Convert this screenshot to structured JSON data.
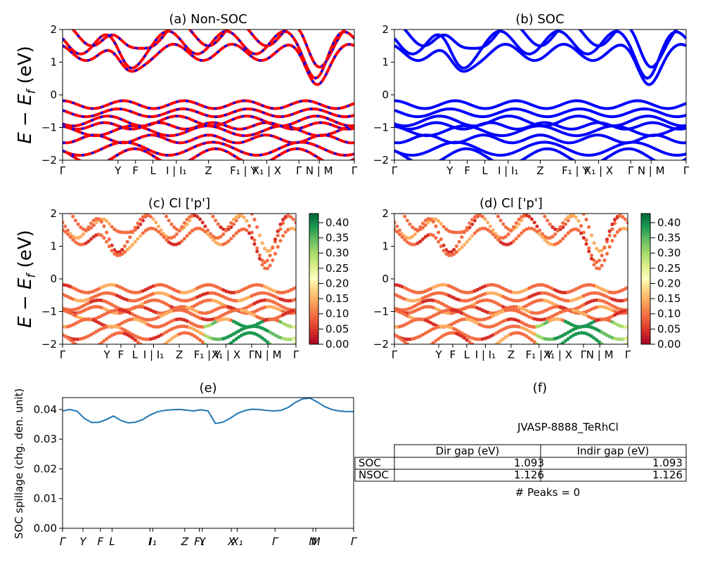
{
  "figure": {
    "panels": {
      "a": {
        "title": "(a) Non-SOC",
        "ylabel": "E − E_f (eV)"
      },
      "b": {
        "title": "(b) SOC"
      },
      "c": {
        "title": "(c)  Cl ['p']",
        "ylabel": "E − E_f (eV)"
      },
      "d": {
        "title": "(d) Cl ['p']"
      },
      "e": {
        "title": "(e)",
        "ylabel": "SOC spillage (chg. den. unit)"
      },
      "f": {
        "title": "(f)"
      }
    },
    "colorbar": {
      "ticks": [
        "0.00",
        "0.05",
        "0.10",
        "0.15",
        "0.20",
        "0.25",
        "0.30",
        "0.35",
        "0.40"
      ],
      "max": 0.43,
      "colors": [
        "#a50026",
        "#d73027",
        "#f46d43",
        "#fdae61",
        "#fee08b",
        "#ffffbf",
        "#d9ef8b",
        "#a6d96a",
        "#66bd63",
        "#1a9850",
        "#006837"
      ]
    },
    "colors": {
      "nonsoc_line": "#ff0000",
      "soc_line": "#0000ff",
      "spillage_line": "#1f77b4"
    }
  },
  "kpath_labels_band": [
    "Γ",
    "Y",
    "F",
    "L",
    "I | I₁",
    "Z",
    "F₁ | Y",
    "X₁ | X",
    "Γ",
    "N | M",
    "Γ"
  ],
  "kpath_labels_spillage": [
    "Γ",
    "Y",
    "F",
    "L",
    "I",
    "I₁",
    "Z",
    "F₁",
    "Y",
    "X",
    "X₁",
    "Γ",
    "N",
    "M",
    "Γ"
  ],
  "table": {
    "title": "JVASP-8888_TeRhCl",
    "headers": [
      "Dir gap (eV)",
      "Indir gap (eV)"
    ],
    "rows": [
      {
        "label": "SOC",
        "dir": "1.093",
        "indir": "1.093"
      },
      {
        "label": "NSOC",
        "dir": "1.126",
        "indir": "1.126"
      }
    ],
    "footer": "# Peaks = 0"
  },
  "chart_data": [
    {
      "type": "line",
      "title": "(a) Non-SOC",
      "ylabel": "E − E_f (eV)",
      "ylim": [
        -2,
        2
      ],
      "yticks": [
        -2,
        -1,
        0,
        1,
        2
      ],
      "x": [
        "Γ",
        "Y",
        "F",
        "L",
        "I | I₁",
        "Z",
        "F₁ | Y",
        "X₁ | X",
        "Γ",
        "N | M",
        "Γ"
      ],
      "description_series": [
        {
          "name": "bands",
          "color": "#ff0000"
        }
      ]
    },
    {
      "type": "line",
      "title": "(b) SOC",
      "ylim": [
        -2,
        2
      ],
      "yticks": [
        -2,
        -1,
        0,
        1,
        2
      ],
      "x": [
        "Γ",
        "Y",
        "F",
        "L",
        "I | I₁",
        "Z",
        "F₁ | Y",
        "X₁ | X",
        "Γ",
        "N | M",
        "Γ"
      ]
    },
    {
      "type": "scatter",
      "title": "(c)  Cl ['p']",
      "ylabel": "E − E_f (eV)",
      "ylim": [
        -2,
        2
      ],
      "colorbar": [
        0.0,
        0.43
      ]
    },
    {
      "type": "scatter",
      "title": "(d) Cl ['p']",
      "ylim": [
        -2,
        2
      ],
      "colorbar": [
        0.0,
        0.43
      ]
    },
    {
      "type": "line",
      "title": "(e)",
      "ylabel": "SOC spillage (chg. den. unit)",
      "ylim": [
        0.0,
        0.044
      ],
      "yticks": [
        0.0,
        0.01,
        0.02,
        0.03,
        0.04
      ],
      "x": [
        0,
        0.5,
        1,
        1.5,
        2,
        2.5,
        3,
        3.5,
        4,
        4.5,
        5,
        5.5,
        6,
        6.5,
        7,
        7.5,
        8,
        8.5,
        9,
        9.5,
        10,
        10.5,
        11,
        11.5,
        12,
        12.5,
        13,
        13.5,
        14,
        14.5,
        15,
        15.5,
        16,
        16.5,
        17,
        17.5,
        18,
        18.5,
        19,
        19.5,
        20
      ],
      "series": [
        {
          "values": [
            0.0395,
            0.04,
            0.0394,
            0.037,
            0.0356,
            0.0357,
            0.0366,
            0.0378,
            0.0363,
            0.0355,
            0.0357,
            0.0366,
            0.0381,
            0.0392,
            0.0397,
            0.0399,
            0.04,
            0.0398,
            0.0395,
            0.0399,
            0.0395,
            0.0353,
            0.0357,
            0.037,
            0.0386,
            0.0396,
            0.0401,
            0.04,
            0.0397,
            0.0395,
            0.0397,
            0.0407,
            0.0424,
            0.0436,
            0.0438,
            0.0425,
            0.041,
            0.04,
            0.0395,
            0.0393,
            0.0393
          ]
        }
      ]
    }
  ]
}
